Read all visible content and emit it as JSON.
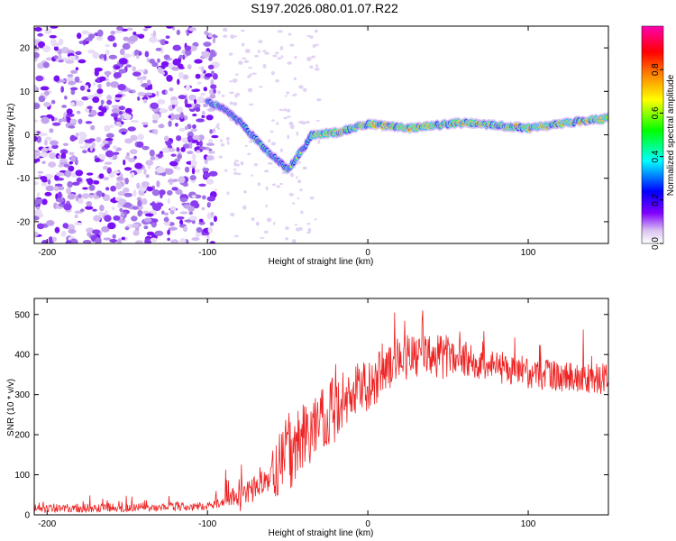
{
  "title": "S197.2026.080.01.07.R22",
  "chart_data": [
    {
      "type": "heatmap",
      "name": "spectrogram",
      "xlabel": "Height of straight line (km)",
      "ylabel": "Frequency (Hz)",
      "xlim": [
        -208,
        150
      ],
      "ylim": [
        -25,
        25
      ],
      "xticks": [
        "-200",
        "-100",
        "0",
        "100"
      ],
      "xtick_values": [
        -200,
        -100,
        0,
        100
      ],
      "yticks": [
        "20",
        "10",
        "0",
        "-10",
        "-20"
      ],
      "ytick_values": [
        20,
        10,
        0,
        -10,
        -20
      ],
      "colorbar": {
        "label": "Normalized spectral amplitude",
        "range": [
          0.0,
          1.0
        ],
        "ticks": [
          "0.0",
          "0.2",
          "0.4",
          "0.6",
          "0.8"
        ],
        "tick_values": [
          0.0,
          0.2,
          0.4,
          0.6,
          0.8
        ],
        "colormap": [
          "#ffffff",
          "#d9c2f0",
          "#8000ff",
          "#0000ff",
          "#00ffff",
          "#00ff00",
          "#ffff00",
          "#ff8000",
          "#ff0000",
          "#ff00b0"
        ]
      },
      "features": {
        "noise_region_x": [
          -208,
          -95
        ],
        "signal_track": [
          {
            "x": -100,
            "f": 7.5
          },
          {
            "x": -90,
            "f": 6.0
          },
          {
            "x": -80,
            "f": 3.0
          },
          {
            "x": -70,
            "f": -1.0
          },
          {
            "x": -62,
            "f": -4.0
          },
          {
            "x": -50,
            "f": -8.0
          },
          {
            "x": -40,
            "f": -3.0
          },
          {
            "x": -35,
            "f": 0.0
          },
          {
            "x": -20,
            "f": 0.5
          },
          {
            "x": 0,
            "f": 2.5
          },
          {
            "x": 25,
            "f": 1.5
          },
          {
            "x": 60,
            "f": 2.8
          },
          {
            "x": 100,
            "f": 1.5
          },
          {
            "x": 130,
            "f": 3.0
          },
          {
            "x": 150,
            "f": 3.8
          }
        ]
      }
    },
    {
      "type": "line",
      "name": "snr",
      "xlabel": "Height of straight line (km)",
      "ylabel": "SNR (10 * v/v)",
      "xlim": [
        -208,
        150
      ],
      "ylim": [
        0,
        540
      ],
      "xticks": [
        "-200",
        "-100",
        "0",
        "100"
      ],
      "xtick_values": [
        -200,
        -100,
        0,
        100
      ],
      "yticks": [
        "0",
        "100",
        "200",
        "300",
        "400",
        "500"
      ],
      "ytick_values": [
        0,
        100,
        200,
        300,
        400,
        500
      ],
      "color": "#ee2222",
      "envelope": [
        {
          "x": -208,
          "y": 15
        },
        {
          "x": -150,
          "y": 18
        },
        {
          "x": -100,
          "y": 22
        },
        {
          "x": -80,
          "y": 40
        },
        {
          "x": -65,
          "y": 80
        },
        {
          "x": -50,
          "y": 140
        },
        {
          "x": -40,
          "y": 190
        },
        {
          "x": -30,
          "y": 230
        },
        {
          "x": -20,
          "y": 265
        },
        {
          "x": -10,
          "y": 300
        },
        {
          "x": 0,
          "y": 330
        },
        {
          "x": 10,
          "y": 360
        },
        {
          "x": 20,
          "y": 390
        },
        {
          "x": 40,
          "y": 400
        },
        {
          "x": 60,
          "y": 385
        },
        {
          "x": 80,
          "y": 370
        },
        {
          "x": 100,
          "y": 355
        },
        {
          "x": 120,
          "y": 345
        },
        {
          "x": 150,
          "y": 340
        }
      ]
    }
  ]
}
